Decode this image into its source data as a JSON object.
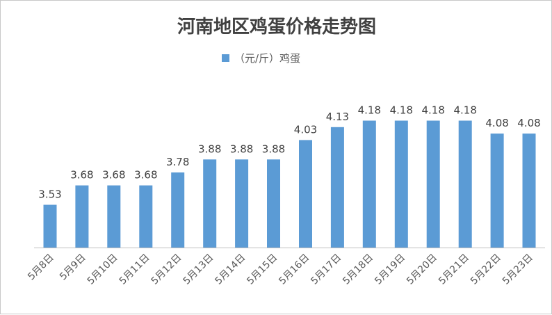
{
  "chart_data": {
    "type": "bar",
    "title": "河南地区鸡蛋价格走势图",
    "legend": {
      "position": "top",
      "entries": [
        "（元/斤）鸡蛋"
      ]
    },
    "series": [
      {
        "name": "（元/斤）鸡蛋",
        "color": "#5b9bd5",
        "values": [
          3.53,
          3.68,
          3.68,
          3.68,
          3.78,
          3.88,
          3.88,
          3.88,
          4.03,
          4.13,
          4.18,
          4.18,
          4.18,
          4.18,
          4.08,
          4.08
        ],
        "labels": [
          "3.53",
          "3.68",
          "3.68",
          "3.68",
          "3.78",
          "3.88",
          "3.88",
          "3.88",
          "4.03",
          "4.13",
          "4.18",
          "4.18",
          "4.18",
          "4.18",
          "4.08",
          "4.08"
        ]
      }
    ],
    "categories": [
      "5月8日",
      "5月9日",
      "5月10日",
      "5月11日",
      "5月12日",
      "5月13日",
      "5月14日",
      "5月15日",
      "5月16日",
      "5月17日",
      "5月18日",
      "5月19日",
      "5月20日",
      "5月21日",
      "5月22日",
      "5月23日"
    ],
    "xlabel": "",
    "ylabel": "",
    "ylim": [
      3.2,
      4.22
    ],
    "grid": false,
    "axis_color": "#bfbfbf"
  }
}
